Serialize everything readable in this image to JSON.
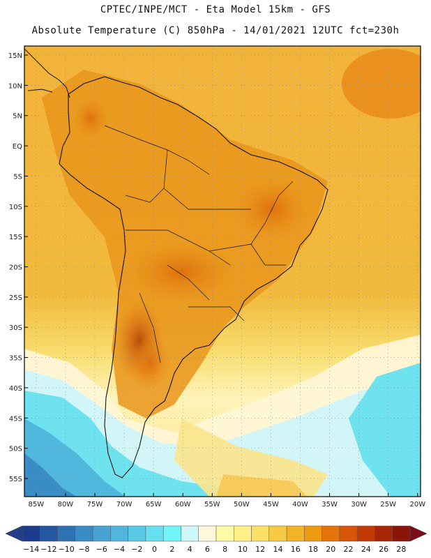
{
  "header": {
    "line1": "CPTEC/INPE/MCT -  Eta Model 15km - GFS",
    "line2": "Absolute Temperature (C) 850hPa - 14/01/2021 12UTC fct=230h"
  },
  "map": {
    "lat_labels": [
      "15N",
      "10N",
      "5N",
      "EQ",
      "5S",
      "10S",
      "15S",
      "20S",
      "25S",
      "30S",
      "35S",
      "40S",
      "45S",
      "50S",
      "55S"
    ],
    "lat_values": [
      15,
      10,
      5,
      0,
      -5,
      -10,
      -15,
      -20,
      -25,
      -30,
      -35,
      -40,
      -45,
      -50,
      -55
    ],
    "lon_labels": [
      "85W",
      "80W",
      "75W",
      "70W",
      "65W",
      "60W",
      "55W",
      "50W",
      "45W",
      "40W",
      "35W",
      "30W",
      "25W",
      "20W"
    ],
    "lon_values": [
      -85,
      -80,
      -75,
      -70,
      -65,
      -60,
      -55,
      -50,
      -45,
      -40,
      -35,
      -30,
      -25,
      -20
    ],
    "variable": "Absolute Temperature",
    "units": "C",
    "level": "850hPa"
  },
  "colorbar": {
    "labels": [
      "-14",
      "-12",
      "-10",
      "-8",
      "-6",
      "-4",
      "-2",
      "0",
      "2",
      "4",
      "6",
      "8",
      "10",
      "12",
      "14",
      "16",
      "18",
      "20",
      "22",
      "24",
      "26",
      "28"
    ],
    "colors": [
      "#1c3b8c",
      "#2358a0",
      "#2d73b4",
      "#3a8cc4",
      "#46a3d2",
      "#50b6dd",
      "#5ac9e6",
      "#66dff0",
      "#72f4f8",
      "#cef7fa",
      "#fff6dc",
      "#fffaa6",
      "#fff08a",
      "#fbe065",
      "#f6ca45",
      "#f2b425",
      "#ee9b12",
      "#e4750a",
      "#d85508",
      "#c33a07",
      "#a82507",
      "#8a1508"
    ],
    "under_color": "#233e86",
    "over_color": "#7a0f1a"
  }
}
